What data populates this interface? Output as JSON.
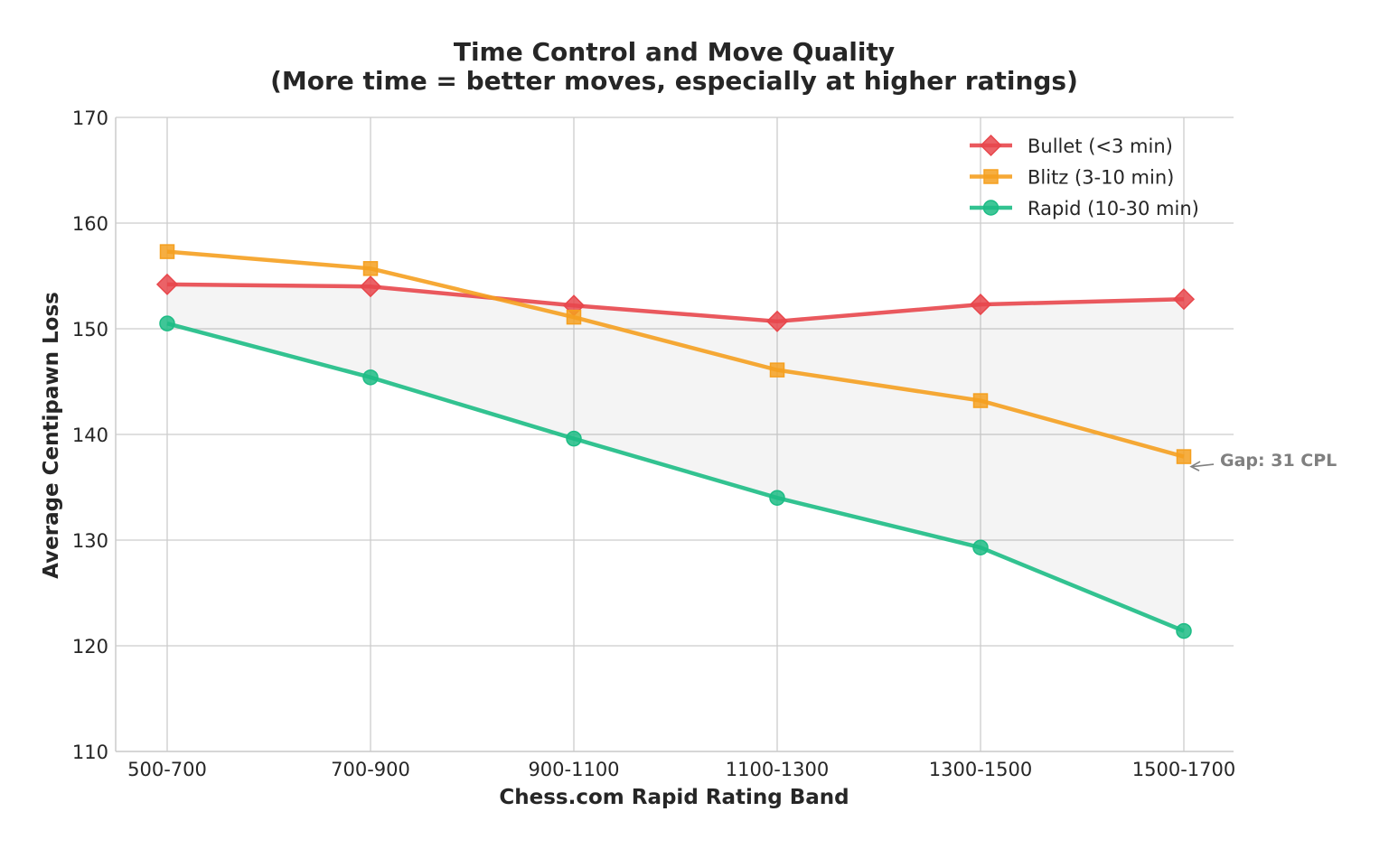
{
  "chart_data": {
    "type": "line",
    "title": "Time Control and Move Quality",
    "subtitle": "(More time = better moves, especially at higher ratings)",
    "xlabel": "Chess.com Rapid Rating Band",
    "ylabel": "Average Centipawn Loss",
    "categories": [
      "500-700",
      "700-900",
      "900-1100",
      "1100-1300",
      "1300-1500",
      "1500-1700"
    ],
    "ylim": [
      110,
      170
    ],
    "yticks": [
      110,
      120,
      130,
      140,
      150,
      160,
      170
    ],
    "grid": true,
    "legend_position": "top-right",
    "shaded_region": "between Bullet and Rapid",
    "series": [
      {
        "name": "Bullet (<3 min)",
        "color": "#e8474c",
        "marker": "diamond",
        "values": [
          154.2,
          154.0,
          152.2,
          150.7,
          152.3,
          152.8
        ]
      },
      {
        "name": "Blitz (3-10 min)",
        "color": "#f5a020",
        "marker": "square",
        "values": [
          157.3,
          155.7,
          151.1,
          146.1,
          143.2,
          137.9
        ]
      },
      {
        "name": "Rapid (10-30 min)",
        "color": "#1dbc85",
        "marker": "circle",
        "values": [
          150.5,
          145.4,
          139.6,
          134.0,
          129.3,
          121.4
        ]
      }
    ],
    "annotation": {
      "text": "Gap: 31 CPL",
      "category": "1500-1700",
      "y": 137
    }
  }
}
